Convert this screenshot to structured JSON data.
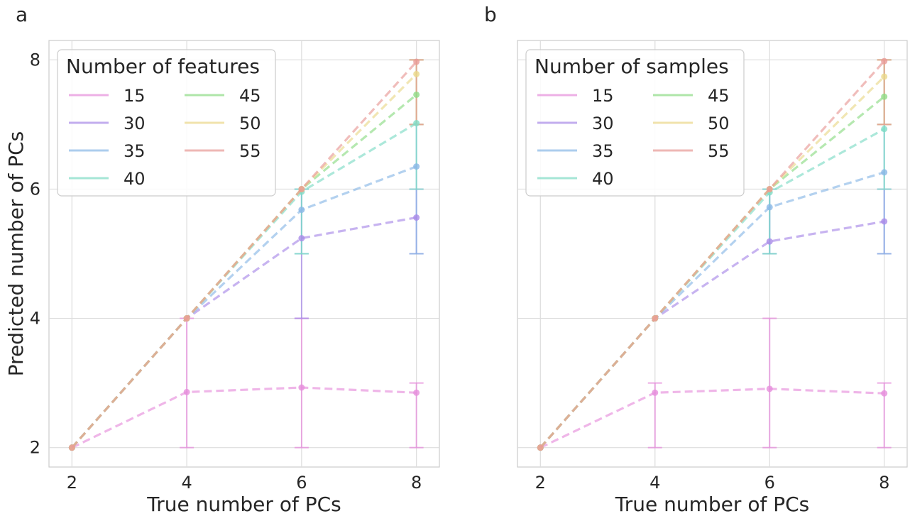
{
  "chart_data": [
    {
      "type": "line",
      "panel_letter": "a",
      "xlabel": "True number of PCs",
      "ylabel": "Predicted number of PCs",
      "x": [
        2,
        4,
        6,
        8
      ],
      "xticks": [
        "2",
        "4",
        "6",
        "8"
      ],
      "yticks": [
        "2",
        "4",
        "6",
        "8"
      ],
      "xlim": [
        1.6,
        8.4
      ],
      "ylim": [
        1.7,
        8.3
      ],
      "grid": true,
      "line_style": "dashed",
      "legend": {
        "title": "Number of features",
        "placement": "top-left",
        "columns": 2
      },
      "series": [
        {
          "name": "15",
          "color": "#e68fdc",
          "values": [
            2,
            2.86,
            2.93,
            2.85
          ],
          "err_low": [
            2,
            2,
            2,
            2
          ],
          "err_high": [
            2,
            4,
            4,
            3
          ]
        },
        {
          "name": "30",
          "color": "#a98be8",
          "values": [
            2,
            4,
            5.24,
            5.56
          ],
          "err_low": [
            2,
            4,
            4,
            5
          ],
          "err_high": [
            2,
            4,
            6,
            6
          ]
        },
        {
          "name": "35",
          "color": "#8ab8e6",
          "values": [
            2,
            4,
            5.68,
            6.35
          ],
          "err_low": [
            2,
            4,
            5,
            5
          ],
          "err_high": [
            2,
            4,
            6,
            7
          ]
        },
        {
          "name": "40",
          "color": "#7fdcc6",
          "values": [
            2,
            4,
            5.96,
            7.02
          ],
          "err_low": [
            2,
            4,
            5,
            6
          ],
          "err_high": [
            2,
            4,
            6,
            8
          ]
        },
        {
          "name": "45",
          "color": "#8edc86",
          "values": [
            2,
            4,
            6,
            7.46
          ],
          "err_low": [
            2,
            4,
            6,
            7
          ],
          "err_high": [
            2,
            4,
            6,
            8
          ]
        },
        {
          "name": "50",
          "color": "#ead88a",
          "values": [
            2,
            4,
            6,
            7.78
          ],
          "err_low": [
            2,
            4,
            6,
            7
          ],
          "err_high": [
            2,
            4,
            6,
            8
          ]
        },
        {
          "name": "55",
          "color": "#e89a96",
          "values": [
            2,
            4,
            6,
            7.97
          ],
          "err_low": [
            2,
            4,
            6,
            7
          ],
          "err_high": [
            2,
            4,
            6,
            8
          ]
        }
      ]
    },
    {
      "type": "line",
      "panel_letter": "b",
      "xlabel": "True number of PCs",
      "ylabel": "",
      "x": [
        2,
        4,
        6,
        8
      ],
      "xticks": [
        "2",
        "4",
        "6",
        "8"
      ],
      "yticks": [],
      "xlim": [
        1.6,
        8.4
      ],
      "ylim": [
        1.7,
        8.3
      ],
      "grid": true,
      "line_style": "dashed",
      "legend": {
        "title": "Number of samples",
        "placement": "top-left",
        "columns": 2
      },
      "series": [
        {
          "name": "15",
          "color": "#e68fdc",
          "values": [
            2,
            2.85,
            2.91,
            2.84
          ],
          "err_low": [
            2,
            2,
            2,
            2
          ],
          "err_high": [
            2,
            3,
            4,
            3
          ]
        },
        {
          "name": "30",
          "color": "#a98be8",
          "values": [
            2,
            4,
            5.19,
            5.5
          ],
          "err_low": [
            2,
            4,
            5,
            5
          ],
          "err_high": [
            2,
            4,
            6,
            6
          ]
        },
        {
          "name": "35",
          "color": "#8ab8e6",
          "values": [
            2,
            4,
            5.72,
            6.26
          ],
          "err_low": [
            2,
            4,
            5,
            5
          ],
          "err_high": [
            2,
            4,
            6,
            7
          ]
        },
        {
          "name": "40",
          "color": "#7fdcc6",
          "values": [
            2,
            4,
            5.95,
            6.93
          ],
          "err_low": [
            2,
            4,
            5,
            6
          ],
          "err_high": [
            2,
            4,
            6,
            8
          ]
        },
        {
          "name": "45",
          "color": "#8edc86",
          "values": [
            2,
            4,
            6,
            7.43
          ],
          "err_low": [
            2,
            4,
            6,
            7
          ],
          "err_high": [
            2,
            4,
            6,
            8
          ]
        },
        {
          "name": "50",
          "color": "#ead88a",
          "values": [
            2,
            4,
            6,
            7.74
          ],
          "err_low": [
            2,
            4,
            6,
            7
          ],
          "err_high": [
            2,
            4,
            6,
            8
          ]
        },
        {
          "name": "55",
          "color": "#e89a96",
          "values": [
            2,
            4,
            6,
            7.98
          ],
          "err_low": [
            2,
            4,
            6,
            7
          ],
          "err_high": [
            2,
            4,
            6,
            8
          ]
        }
      ]
    }
  ]
}
